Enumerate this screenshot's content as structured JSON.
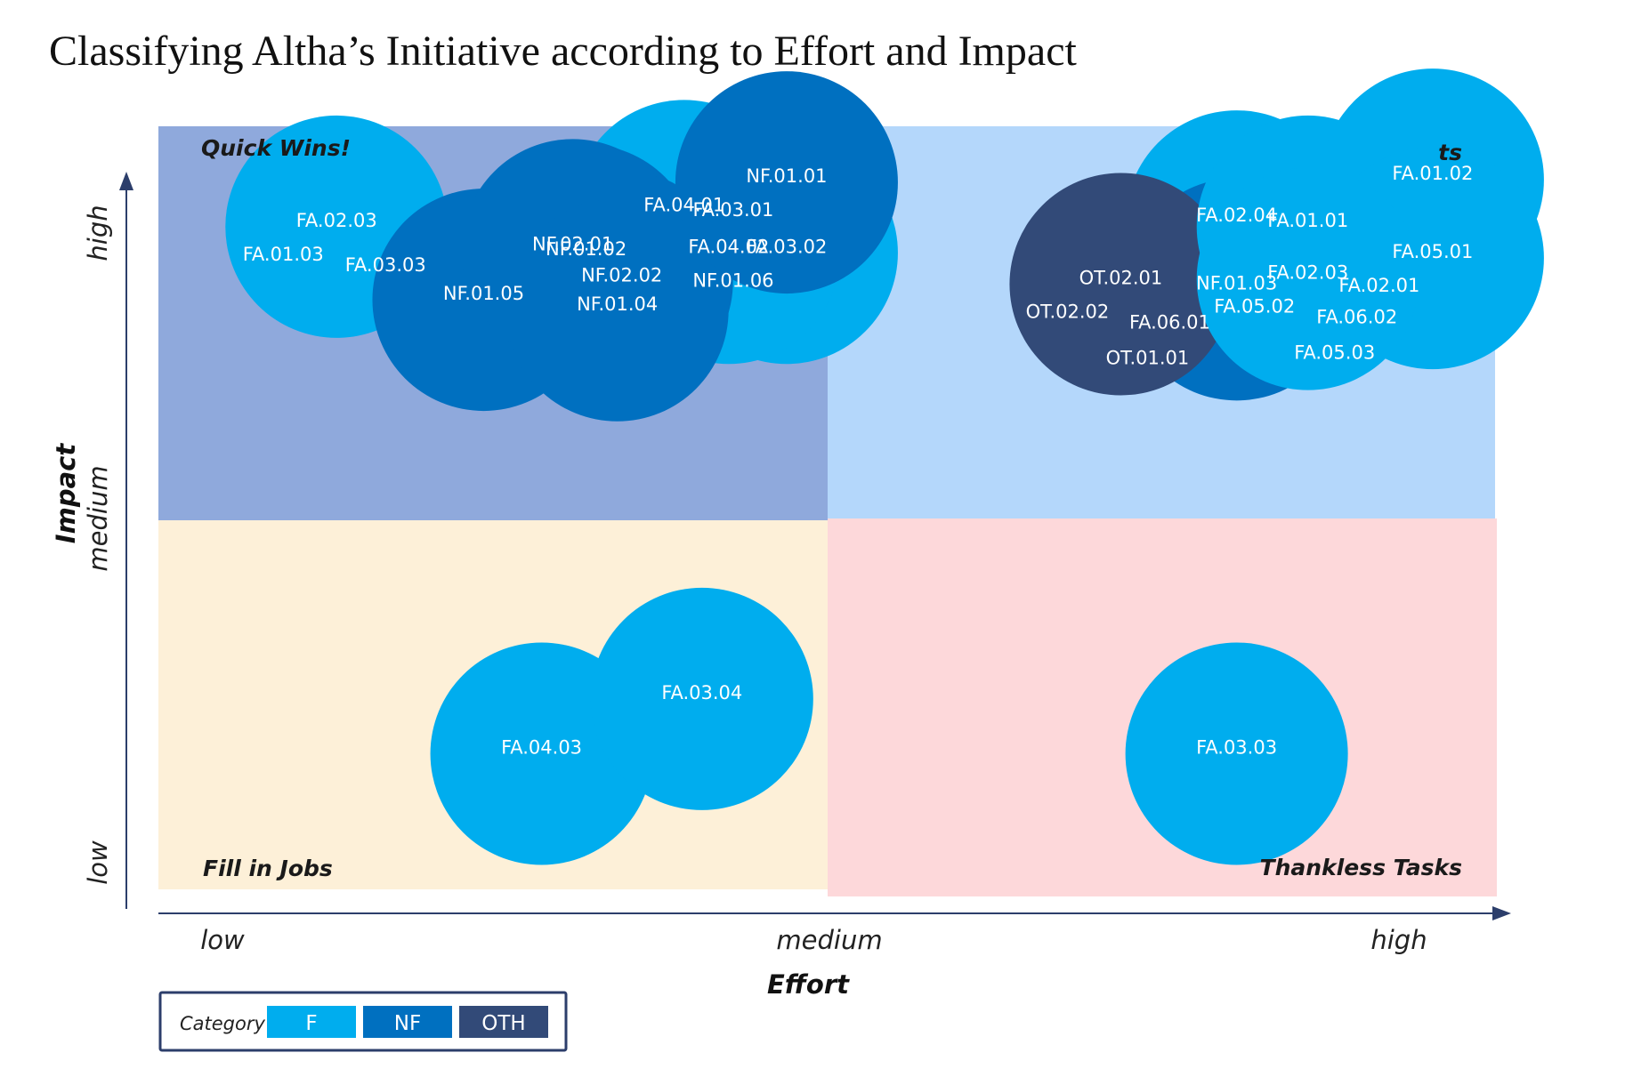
{
  "chart_data": {
    "type": "scatter",
    "title": "Classifying Altha’s Initiative according to Effort and Impact",
    "xlabel": "Effort",
    "ylabel": "Impact",
    "x_ticks": [
      "low",
      "medium",
      "high"
    ],
    "y_ticks": [
      "low",
      "medium",
      "high"
    ],
    "quadrants": [
      {
        "name": "Quick Wins!",
        "color": "#8fa9dc"
      },
      {
        "name": "ts",
        "color": "#b4d7fb"
      },
      {
        "name": "Fill in Jobs",
        "color": "#fdf0d8"
      },
      {
        "name": "Thankless Tasks",
        "color": "#fdd8da"
      }
    ],
    "legend": {
      "title": "Category",
      "items": [
        {
          "label": "F",
          "color": "#00adee"
        },
        {
          "label": "NF",
          "color": "#0070c0"
        },
        {
          "label": "OTH",
          "color": "#324a78"
        }
      ]
    },
    "series": [
      {
        "name": "F",
        "color": "#00adee",
        "points": [
          {
            "x": 1.18,
            "y": 2.6,
            "id": "FA.04.01"
          },
          {
            "x": 1.41,
            "y": 2.44,
            "id": "FA.03.02"
          },
          {
            "x": 1.41,
            "y": 2.44,
            "id": "NF.01.06"
          },
          {
            "x": 1.28,
            "y": 2.44,
            "id": "FA.04.02"
          },
          {
            "x": 0.4,
            "y": 2.54,
            "id": "FA.02.03"
          },
          {
            "x": 0.4,
            "y": 2.54,
            "id": "FA.01.03"
          },
          {
            "x": 0.4,
            "y": 2.54,
            "id": "FA.03.03"
          },
          {
            "x": 0.86,
            "y": 0.52,
            "id": "FA.04.03"
          },
          {
            "x": 1.22,
            "y": 0.73,
            "id": "FA.03.04"
          },
          {
            "x": 2.42,
            "y": 0.52,
            "id": "FA.03.03"
          },
          {
            "x": 2.42,
            "y": 2.56,
            "id": "FA.02.04"
          },
          {
            "x": 2.58,
            "y": 2.54,
            "id": "FA.01.01"
          },
          {
            "x": 2.86,
            "y": 2.72,
            "id": "FA.01.02"
          },
          {
            "x": 2.86,
            "y": 2.42,
            "id": "FA.05.01"
          },
          {
            "x": 2.86,
            "y": 2.42,
            "id": "FA.02.01"
          },
          {
            "x": 2.58,
            "y": 2.34,
            "id": "FA.02.03"
          },
          {
            "x": 2.58,
            "y": 2.34,
            "id": "FA.05.02"
          },
          {
            "x": 2.58,
            "y": 2.34,
            "id": "FA.06.02"
          },
          {
            "x": 2.58,
            "y": 2.34,
            "id": "FA.05.03"
          }
        ]
      },
      {
        "name": "NF",
        "color": "#0070c0",
        "points": [
          {
            "x": 1.04,
            "y": 2.33,
            "id": "NF.02.02"
          },
          {
            "x": 0.96,
            "y": 2.43,
            "id": "NF.01.02"
          },
          {
            "x": 0.73,
            "y": 2.26,
            "id": "NF.01.05"
          },
          {
            "x": 0.93,
            "y": 2.45,
            "id": "NF.02.01"
          },
          {
            "x": 1.03,
            "y": 2.22,
            "id": "NF.01.04"
          },
          {
            "x": 1.41,
            "y": 2.71,
            "id": "NF.01.01"
          },
          {
            "x": 1.41,
            "y": 2.71,
            "id": "FA.03.01"
          },
          {
            "x": 2.42,
            "y": 2.3,
            "id": "NF.01.03"
          }
        ]
      },
      {
        "name": "OTH",
        "color": "#324a78",
        "points": [
          {
            "x": 2.16,
            "y": 2.32,
            "id": "OT.02.01"
          },
          {
            "x": 2.16,
            "y": 2.32,
            "id": "OT.02.02"
          },
          {
            "x": 2.16,
            "y": 2.32,
            "id": "FA.06.01"
          },
          {
            "x": 2.16,
            "y": 2.32,
            "id": "OT.01.01"
          }
        ]
      }
    ]
  }
}
